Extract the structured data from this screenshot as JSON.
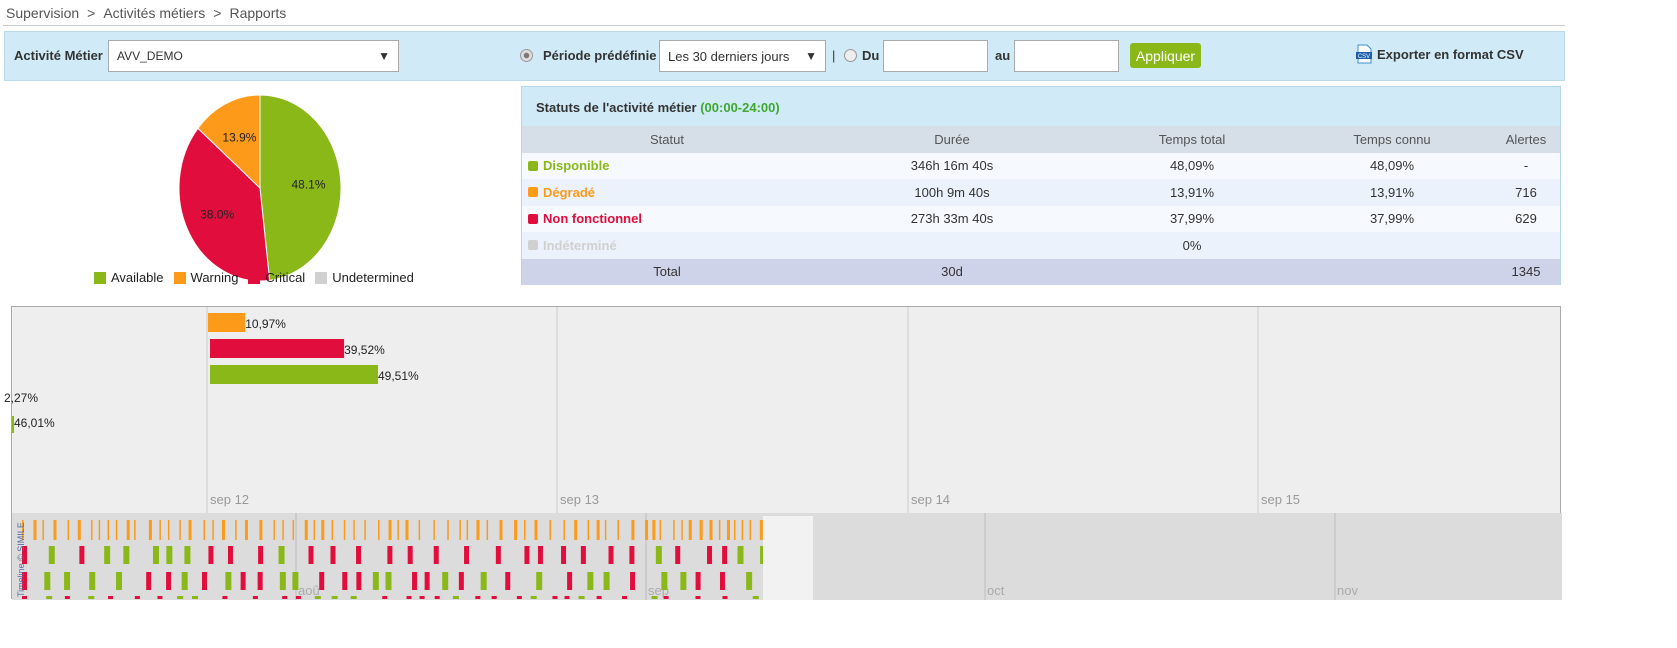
{
  "breadcrumb": [
    "Supervision",
    "Activités métiers",
    "Rapports"
  ],
  "breadcrumb_sep": ">",
  "filter": {
    "activity_label": "Activité Métier",
    "activity_value": "AVV_DEMO",
    "predefined_label": "Période prédéfinie",
    "predefined_value": "Les 30 derniers jours",
    "separator": "|",
    "from_label": "Du",
    "from_value": "",
    "to_label": "au",
    "to_value": "",
    "apply_label": "Appliquer",
    "export_label": "Exporter en format CSV",
    "export_icon": "csv-file-icon"
  },
  "chart_data": {
    "type": "pie",
    "slices": [
      {
        "label": "Available",
        "value": 48.1,
        "text": "48.1%",
        "color": "#8ab819"
      },
      {
        "label": "Critical",
        "value": 38.0,
        "text": "38.0%",
        "color": "#e00d3d"
      },
      {
        "label": "Warning",
        "value": 13.9,
        "text": "13.9%",
        "color": "#fd9a1a"
      }
    ],
    "legend": [
      {
        "label": "Available",
        "color": "#8ab819"
      },
      {
        "label": "Warning",
        "color": "#fd9a1a"
      },
      {
        "label": "Critical",
        "color": "#e00d3d"
      },
      {
        "label": "Undetermined",
        "color": "#d0d0d0"
      }
    ]
  },
  "table": {
    "title": "Statuts de l'activité métier",
    "title_range": "(00:00-24:00)",
    "headers": [
      "Statut",
      "Durée",
      "Temps total",
      "Temps connu",
      "Alertes"
    ],
    "rows": [
      {
        "status": "Disponible",
        "color": "#8ab819",
        "duration": "346h 16m 40s",
        "total": "48,09%",
        "known": "48,09%",
        "alerts": "-"
      },
      {
        "status": "Dégradé",
        "color": "#fd9a1a",
        "duration": "100h 9m 40s",
        "total": "13,91%",
        "known": "13,91%",
        "alerts": "716"
      },
      {
        "status": "Non fonctionnel",
        "color": "#e00d3d",
        "duration": "273h 33m 40s",
        "total": "37,99%",
        "known": "37,99%",
        "alerts": "629"
      },
      {
        "status": "Indéterminé",
        "color": "#d0d0d0",
        "duration": "",
        "total": "0%",
        "known": "",
        "alerts": ""
      }
    ],
    "total": {
      "label": "Total",
      "duration": "30d",
      "alerts": "1345"
    }
  },
  "timeline": {
    "day_labels": [
      "sep 12",
      "sep 13",
      "sep 14",
      "sep 15"
    ],
    "month_labels": [
      "aoû",
      "sep",
      "oct",
      "nov"
    ],
    "credit": "Timeline © SIMILE",
    "bars": [
      {
        "text": "10,97%",
        "value": 10.97,
        "color": "#fd9a1a"
      },
      {
        "text": "39,52%",
        "value": 39.52,
        "color": "#e00d3d"
      },
      {
        "text": "49,51%",
        "value": 49.51,
        "color": "#8ab819"
      }
    ],
    "prev_bars": [
      {
        "text": "2,27%",
        "value": 2.27,
        "color": "#e00d3d"
      },
      {
        "text": "46,01%",
        "value": 46.01,
        "color": "#8ab819"
      }
    ]
  }
}
